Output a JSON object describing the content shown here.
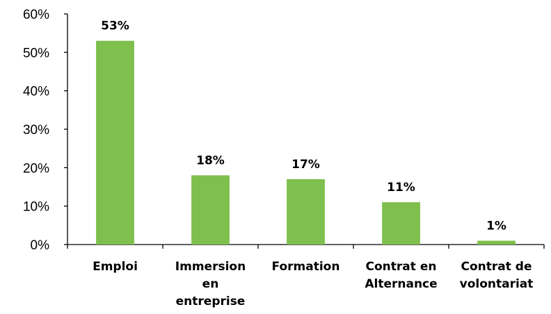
{
  "chart_data": {
    "type": "bar",
    "categories": [
      [
        "Emploi"
      ],
      [
        "Immersion",
        "en",
        "entreprise"
      ],
      [
        "Formation"
      ],
      [
        "Contrat en",
        "Alternance"
      ],
      [
        "Contrat de",
        "volontariat"
      ]
    ],
    "values": [
      53,
      18,
      17,
      11,
      1
    ],
    "data_labels": [
      "53%",
      "18%",
      "17%",
      "11%",
      "1%"
    ],
    "y_ticks": [
      "0%",
      "10%",
      "20%",
      "30%",
      "40%",
      "50%",
      "60%"
    ],
    "ylim": [
      0,
      60
    ],
    "bar_color": "#7ebf4d",
    "grid": false,
    "legend": "none",
    "title": "",
    "xlabel": "",
    "ylabel": ""
  }
}
